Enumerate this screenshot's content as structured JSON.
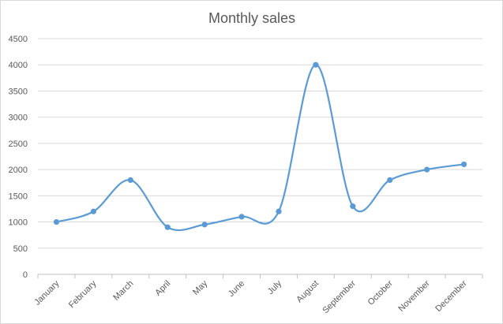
{
  "chart_data": {
    "type": "line",
    "title": "Monthly sales",
    "xlabel": "",
    "ylabel": "",
    "categories": [
      "January",
      "February",
      "March",
      "April",
      "May",
      "June",
      "July",
      "August",
      "September",
      "October",
      "November",
      "December"
    ],
    "series": [
      {
        "values": [
          1000,
          1200,
          1800,
          900,
          950,
          1100,
          1200,
          4000,
          1300,
          1800,
          2000,
          2100
        ],
        "color": "#5b9bd5"
      }
    ],
    "ylim": [
      0,
      4500
    ],
    "yticks": [
      0,
      500,
      1000,
      1500,
      2000,
      2500,
      3000,
      3500,
      4000,
      4500
    ],
    "ytick_labels": [
      "0",
      "500",
      "1000",
      "1500",
      "2000",
      "2500",
      "3000",
      "3500",
      "4000",
      "4500"
    ],
    "smooth": true,
    "markers": true,
    "grid": true,
    "legend": false
  }
}
